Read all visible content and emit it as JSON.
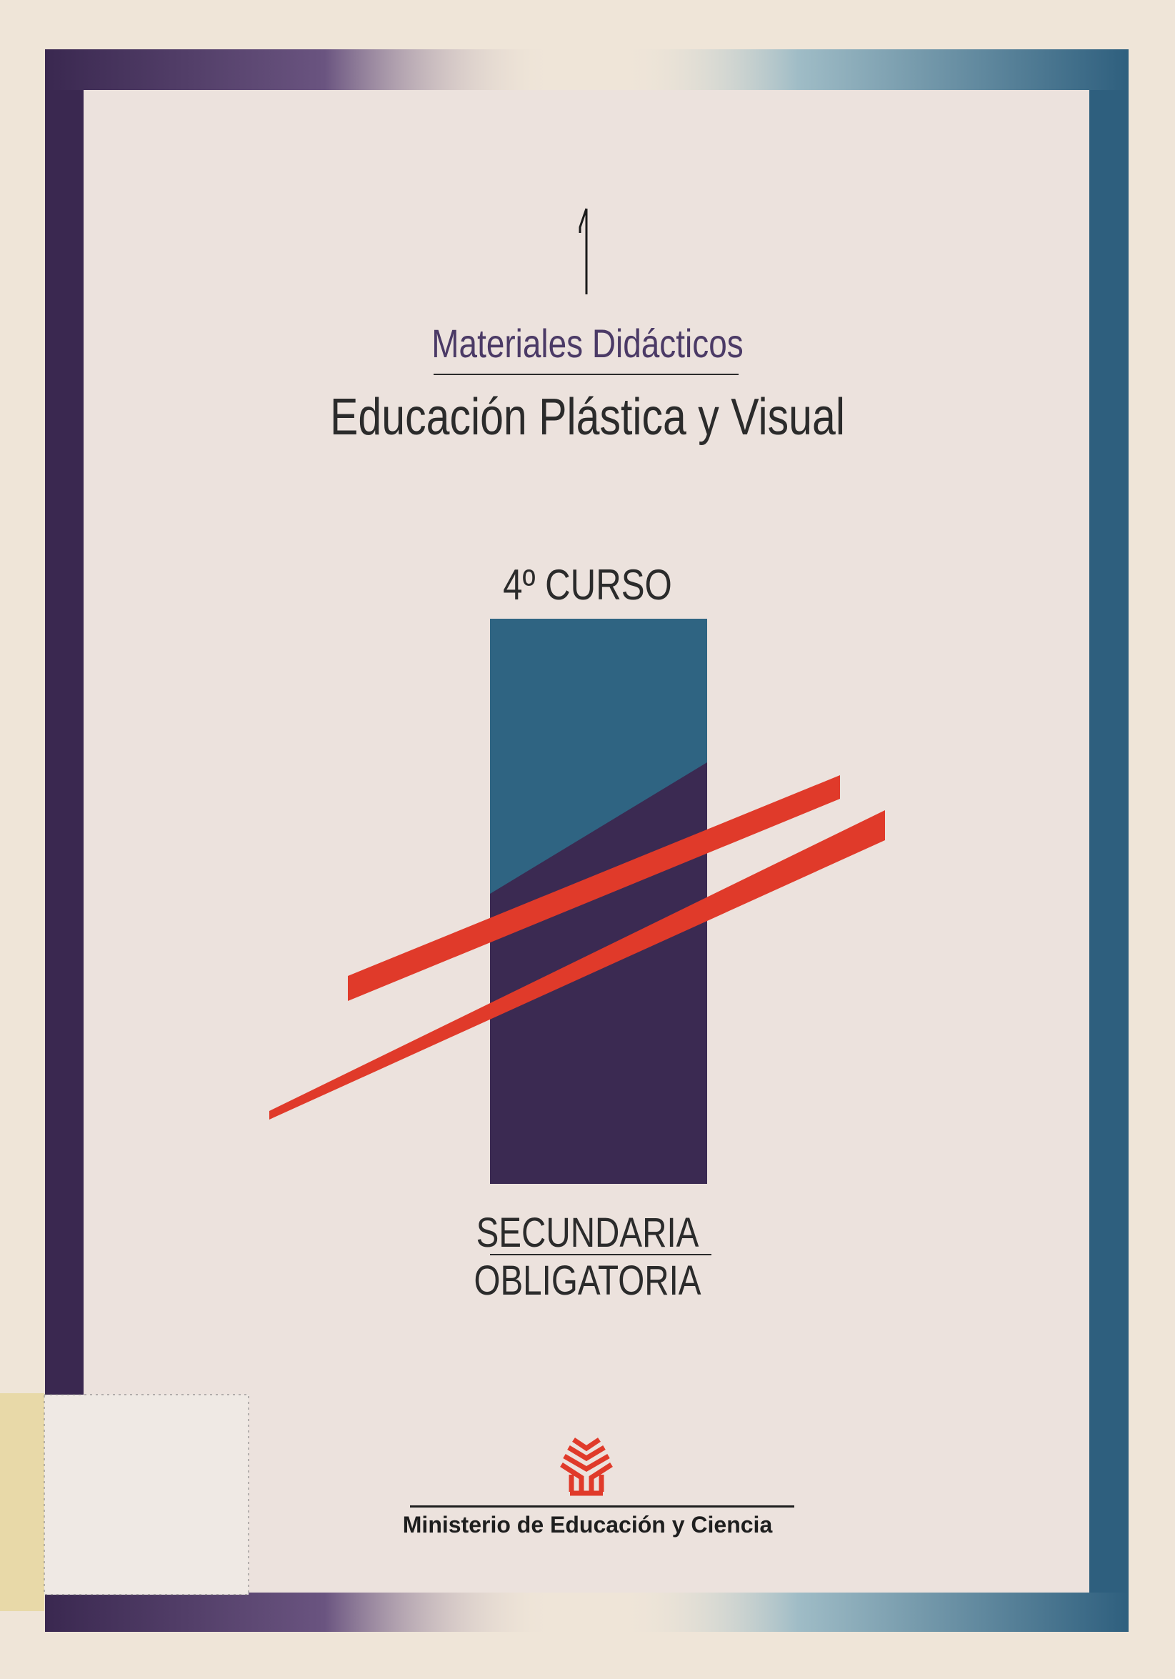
{
  "cover": {
    "volume_number": "1",
    "series": "Materiales Didácticos",
    "title": "Educación Plástica y Visual",
    "course": "4º CURSO",
    "level_line1": "SECUNDARIA",
    "level_line2": "OBLIGATORIA",
    "publisher": "Ministerio de Educación y Ciencia"
  },
  "colors": {
    "frame_left": "#3a2850",
    "frame_right": "#2e5f7e",
    "accent_red": "#e03a2a",
    "block_blue": "#2f6482",
    "block_purple": "#3b2a52",
    "series_text": "#4b3a66"
  },
  "icons": {
    "publisher_logo": "mec-tree-logo"
  }
}
